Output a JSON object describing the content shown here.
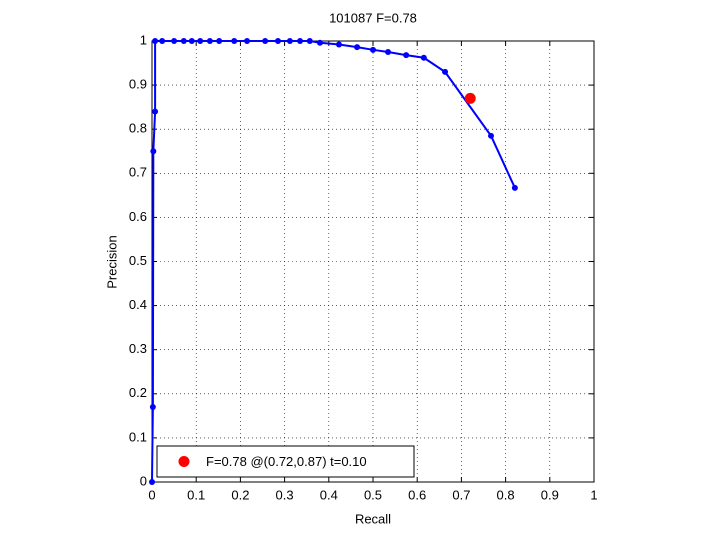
{
  "chart_data": {
    "type": "line",
    "title": "101087 F=0.78",
    "x_label": "Recall",
    "y_label": "Precision",
    "series": [
      {
        "color": "#0000ff",
        "x": [
          0,
          0.002,
          0.003,
          0.007,
          0.007,
          0.023,
          0.05,
          0.072,
          0.09,
          0.109,
          0.131,
          0.152,
          0.186,
          0.215,
          0.256,
          0.285,
          0.312,
          0.335,
          0.357,
          0.38,
          0.423,
          0.464,
          0.5,
          0.534,
          0.575,
          0.615,
          0.663,
          0.767,
          0.821
        ],
        "values": [
          0,
          0.17,
          0.75,
          0.84,
          1,
          1,
          1,
          1,
          1,
          1,
          1,
          1,
          1,
          1,
          1,
          1,
          1,
          1,
          1,
          0.996,
          0.992,
          0.986,
          0.98,
          0.975,
          0.968,
          0.962,
          0.93,
          0.785,
          0.667
        ]
      },
      {
        "name": "F=0.78 @(0.72,0.87) t=0.10",
        "color": "#ff0000",
        "x": [
          0.72
        ],
        "values": [
          0.87
        ]
      }
    ],
    "xlim": [
      0,
      1
    ],
    "ylim": [
      0,
      1
    ],
    "xticks": [
      0,
      0.1,
      0.2,
      0.3,
      0.4,
      0.5,
      0.6,
      0.7,
      0.8,
      0.9,
      1
    ],
    "yticks": [
      0,
      0.1,
      0.2,
      0.3,
      0.4,
      0.5,
      0.6,
      0.7,
      0.8,
      0.9,
      1
    ],
    "grid": true,
    "legend": "lower left"
  }
}
